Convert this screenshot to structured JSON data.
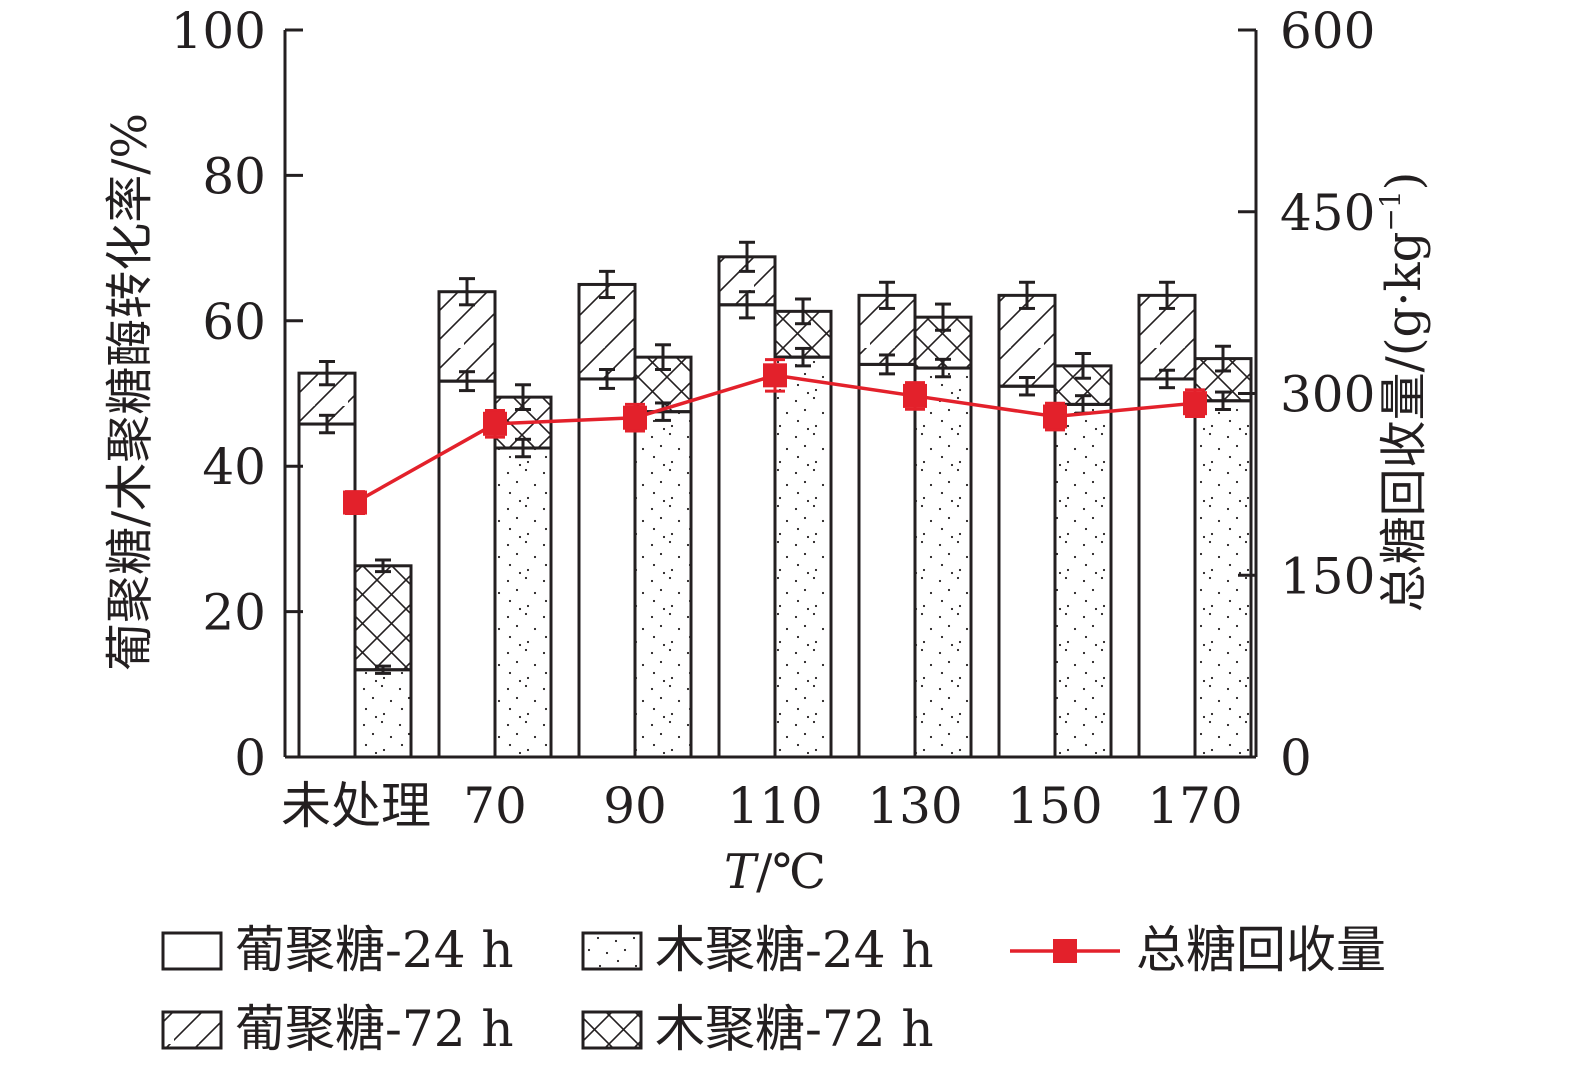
{
  "chart_data": {
    "type": "bar",
    "categories": [
      "未处理",
      "70",
      "90",
      "110",
      "130",
      "150",
      "170"
    ],
    "xlabel": "T/℃",
    "xlabel_italic_part": "T",
    "xlabel_rest": "/℃",
    "ylabel_left": "葡聚糖/木聚糖酶转化率/%",
    "ylabel_right": "总糖回收量/(g·kg⁻¹)",
    "ylabel_right_main": "总糖回收量/(g·kg",
    "ylabel_right_sup": "−1",
    "ylabel_right_close": ")",
    "ylim_left": [
      0,
      100
    ],
    "ylim_right": [
      0,
      600
    ],
    "yticks_left": [
      0,
      20,
      40,
      60,
      80,
      100
    ],
    "yticks_right": [
      0,
      150,
      300,
      450,
      600
    ],
    "grid": false,
    "legend_position": "bottom",
    "series": [
      {
        "name": "葡聚糖-24 h",
        "values": [
          45.8,
          51.7,
          52.0,
          62.2,
          54.0,
          51.0,
          52.0
        ],
        "errors": [
          1.2,
          1.3,
          1.3,
          1.8,
          1.3,
          1.2,
          1.2
        ]
      },
      {
        "name": "葡聚糖-72 h",
        "values": [
          52.8,
          64.0,
          65.0,
          68.8,
          63.5,
          63.5,
          63.5
        ],
        "errors": [
          1.6,
          1.8,
          1.8,
          2.0,
          1.8,
          1.8,
          1.8
        ]
      },
      {
        "name": "木聚糖-24 h",
        "values": [
          12.0,
          42.5,
          47.5,
          55.0,
          53.5,
          48.5,
          49.0
        ],
        "errors": [
          0.5,
          1.2,
          1.2,
          1.2,
          1.2,
          1.2,
          1.2
        ]
      },
      {
        "name": "木聚糖-72 h",
        "values": [
          26.3,
          49.5,
          55.0,
          61.3,
          60.5,
          53.8,
          54.8
        ],
        "errors": [
          0.8,
          1.7,
          1.7,
          1.7,
          1.8,
          1.7,
          1.7
        ]
      },
      {
        "name": "总糖回收量",
        "axis": "right",
        "color": "#e3212b",
        "values": [
          210,
          275,
          280,
          315,
          298,
          281,
          292
        ],
        "errors": [
          9,
          11,
          11,
          13,
          11,
          11,
          11
        ]
      }
    ]
  }
}
